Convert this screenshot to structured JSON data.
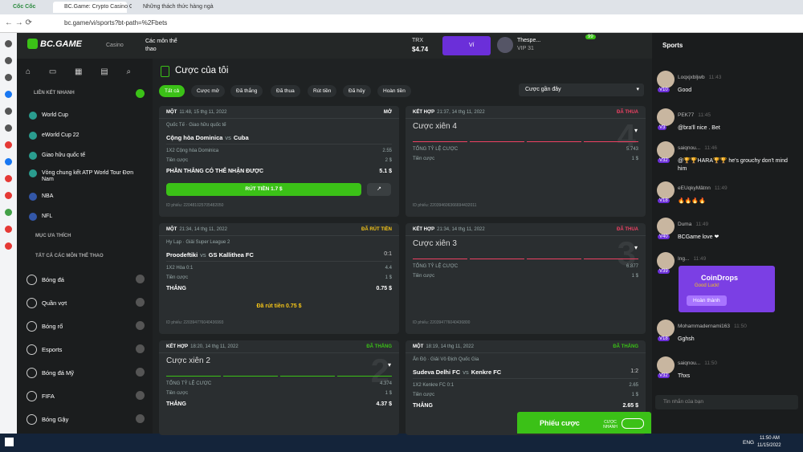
{
  "browser": {
    "tabs": [
      "Cốc Cốc",
      "BC.Game: Crypto Casino Gam",
      "Những thách thức hàng ngà"
    ],
    "url": "bc.game/vi/sports?bt-path=%2Fbets"
  },
  "header": {
    "logo": "BC.GAME",
    "casino": "Casino",
    "sports": "Các môn thể thao",
    "currency": "TRX",
    "balance": "$4.74",
    "wallet": "Ví",
    "user": "Thespe...",
    "vip": "VIP 31",
    "badge": "99"
  },
  "nav": {
    "quick_title": "LIÊN KẾT NHANH",
    "quick": [
      "World Cup",
      "eWorld Cup 22",
      "Giao hữu quốc tế",
      "Vòng chung kết ATP World Tour Đơn Nam",
      "NBA",
      "NFL"
    ],
    "fav_title": "MỤC ƯA THÍCH",
    "all_title": "TẤT CẢ CÁC MÔN THỂ THAO",
    "sports": [
      "Bóng đá",
      "Quần vợt",
      "Bóng rổ",
      "Esports",
      "Bóng đá Mỹ",
      "FIFA",
      "Bóng Gậy"
    ]
  },
  "main": {
    "title": "Cược của tôi",
    "filters": [
      "Tất cả",
      "Cược mở",
      "Đã thắng",
      "Đã thua",
      "Rút tiền",
      "Đã hủy",
      "Hoàn tiền"
    ],
    "sort": "Cược gần đây",
    "bets": [
      {
        "kind": "MỘT",
        "time": "11:48, 15 thg 11, 2022",
        "status": "MỞ",
        "status_color": "#ffffff",
        "league": "Quốc Tế · Giao hữu quốc tế",
        "home": "Cộng hòa Dominica",
        "vs": "vs",
        "away": "Cuba",
        "pick": "1X2 Cộng hòa Dominica",
        "odds": "2.55",
        "stake_label": "Tiền cược",
        "stake": "2 $",
        "win_label": "PHẦN THẮNG CÓ THỂ NHẬN ĐƯỢC",
        "win": "5.1 $",
        "button": "RÚT TIỀN 1.7 $",
        "id": "ID phiếu: 220481025705482050"
      },
      {
        "kind": "KẾT HỢP",
        "time": "21:37, 14 thg 11, 2022",
        "status": "ĐÃ THUA",
        "status_color": "#ed4163",
        "title": "Cược xiên 4",
        "big": "4",
        "total_label": "TỔNG TỶ LỆ CƯỢC",
        "total": "5.743",
        "stake_label": "Tiền cược",
        "stake": "1 $",
        "id": "ID phiếu: 220394606366694432011"
      },
      {
        "kind": "MỘT",
        "time": "21:34, 14 thg 11, 2022",
        "status": "ĐÃ RÚT TIỀN",
        "status_color": "#f5c518",
        "league": "Hy Lạp · Giải Super League 2",
        "home": "Proodeftiki",
        "vs": "vs",
        "away": "GS Kallithea FC",
        "score": "0:1",
        "pick": "1X2 Hòa 0:1",
        "odds": "4.4",
        "stake_label": "Tiền cược",
        "stake": "1 $",
        "win_label": "THẮNG",
        "win": "0.75 $",
        "cashout": "Đã rút tiền 0.75 $",
        "id": "ID phiếu: 220394776040436993"
      },
      {
        "kind": "KẾT HỢP",
        "time": "21:34, 14 thg 11, 2022",
        "status": "ĐÃ THUA",
        "status_color": "#ed4163",
        "title": "Cược xiên 3",
        "big": "3",
        "total_label": "TỔNG TỶ LỆ CƯỢC",
        "total": "6.877",
        "stake_label": "Tiền cược",
        "stake": "1 $",
        "id": "ID phiếu: 220394776040436800"
      },
      {
        "kind": "KẾT HỢP",
        "time": "18:20, 14 thg 11, 2022",
        "status": "ĐÃ THẮNG",
        "status_color": "#3bc117",
        "title": "Cược xiên 2",
        "big": "2",
        "total_label": "TỔNG TỶ LỆ CƯỢC",
        "total": "4.374",
        "stake_label": "Tiền cược",
        "stake": "1 $",
        "win_label": "THẮNG",
        "win": "4.37 $"
      },
      {
        "kind": "MỘT",
        "time": "18:19, 14 thg 11, 2022",
        "status": "ĐÃ THẮNG",
        "status_color": "#3bc117",
        "league": "Ấn Độ · Giải Vô Địch Quốc Gia",
        "home": "Sudeva Delhi FC",
        "vs": "vs",
        "away": "Kenkre FC",
        "score": "1:2",
        "pick": "1X2 Kenkre FC 0:1",
        "odds": "2.65",
        "stake_label": "Tiền cược",
        "stake": "1 $",
        "win_label": "THẮNG",
        "win": "2.65 $"
      }
    ]
  },
  "chat": {
    "tab": "Sports",
    "messages": [
      {
        "user": "Loqxjxbljwb",
        "level": "V10",
        "time": "11:43",
        "text": "Good"
      },
      {
        "user": "PEK77",
        "level": "V3",
        "time": "11:45",
        "text": "@bra'll nice . Bet"
      },
      {
        "user": "saiqnou...",
        "level": "V32",
        "time": "11:46",
        "text": "@🏆🏆HARA🏆🏆 he's grouchy don't mind him"
      },
      {
        "user": "eEUqkyMâtnn",
        "level": "V18",
        "time": "11:49",
        "text": "🔥🔥🔥🔥"
      },
      {
        "user": "Duma",
        "level": "V40",
        "time": "11:49",
        "text": "BCGame love ❤"
      },
      {
        "user": "Ing...",
        "level": "V39",
        "time": "11:49",
        "text": ""
      },
      {
        "user": "Mohammadernami163",
        "level": "V18",
        "time": "11:50",
        "text": "Gghsh"
      },
      {
        "user": "saiqnou...",
        "level": "V32",
        "time": "11:50",
        "text": "Thxs"
      }
    ],
    "coindrop": {
      "title": "CoinDrops",
      "sub": "Good Luck!",
      "button": "Hoàn thành"
    },
    "input": "Tin nhắn của bạn"
  },
  "betslip": {
    "label": "Phiếu cược",
    "quick": "CƯỢC NHANH"
  },
  "taskbar": {
    "lang": "ENG",
    "time": "11:50 AM",
    "date": "11/15/2022"
  }
}
